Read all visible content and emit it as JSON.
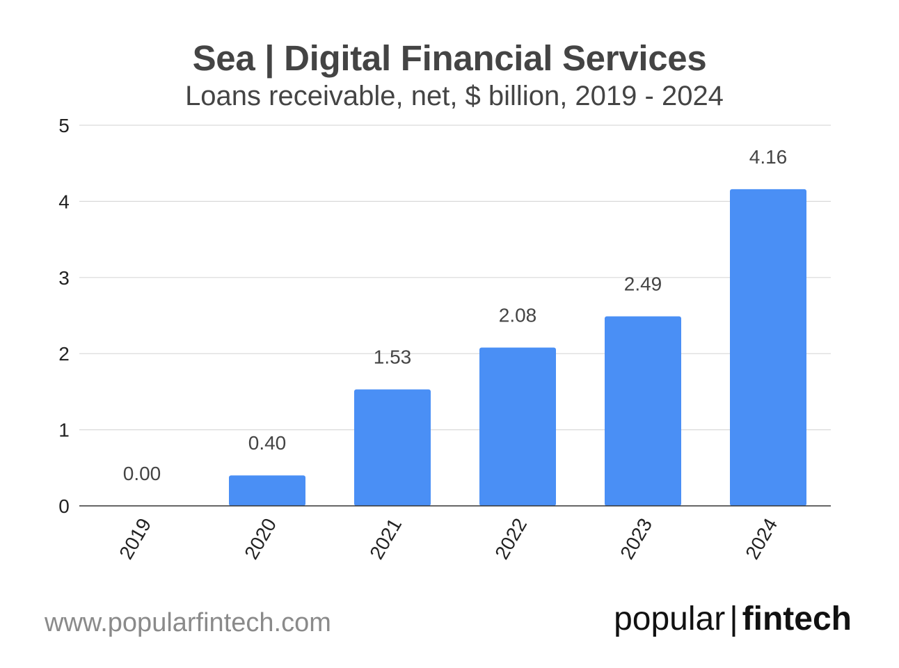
{
  "chart_data": {
    "type": "bar",
    "title": "Sea | Digital Financial Services",
    "subtitle": "Loans receivable, net, $ billion, 2019 - 2024",
    "categories": [
      "2019",
      "2020",
      "2021",
      "2022",
      "2023",
      "2024"
    ],
    "values": [
      0.0,
      0.4,
      1.53,
      2.08,
      2.49,
      4.16
    ],
    "data_labels": [
      "0.00",
      "0.40",
      "1.53",
      "2.08",
      "2.49",
      "4.16"
    ],
    "y_ticks": [
      "0",
      "1",
      "2",
      "3",
      "4",
      "5"
    ],
    "ylim": [
      0,
      5
    ],
    "grid": true,
    "bar_color": "#4a8ff5",
    "x_tick_rotation": "-60deg"
  },
  "footer": {
    "url": "www.popularfintech.com",
    "brand_left": "popular",
    "brand_sep": "|",
    "brand_right": "fintech"
  }
}
